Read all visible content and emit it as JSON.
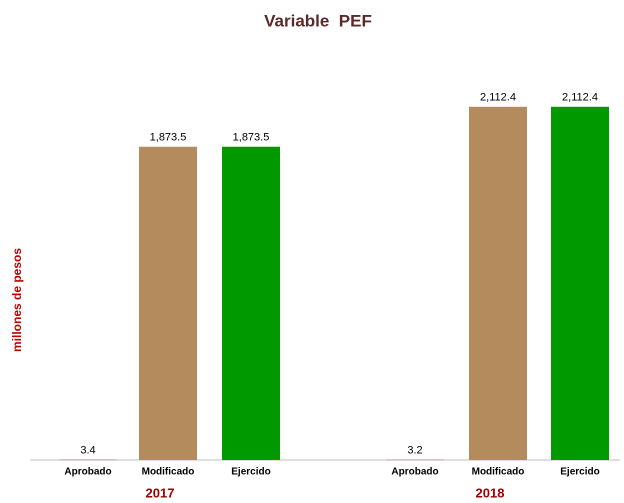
{
  "chart_data": {
    "type": "bar",
    "title": "Variable  PEF",
    "y_label": "millones de pesos",
    "categories": [
      "2017",
      "2018"
    ],
    "series": [
      {
        "name": "Aprobado",
        "color": "#c48a94",
        "values": [
          3.4,
          3.2
        ],
        "value_labels": [
          "3.4",
          "3.2"
        ]
      },
      {
        "name": "Modificado",
        "color": "#b38b5d",
        "values": [
          1873.5,
          2112.4
        ],
        "value_labels": [
          "1,873.5",
          "2,112.4"
        ]
      },
      {
        "name": "Ejercido",
        "color": "#009900",
        "values": [
          1873.5,
          2112.4
        ],
        "value_labels": [
          "1,873.5",
          "2,112.4"
        ]
      }
    ],
    "ylim": [
      0,
      2500
    ]
  }
}
